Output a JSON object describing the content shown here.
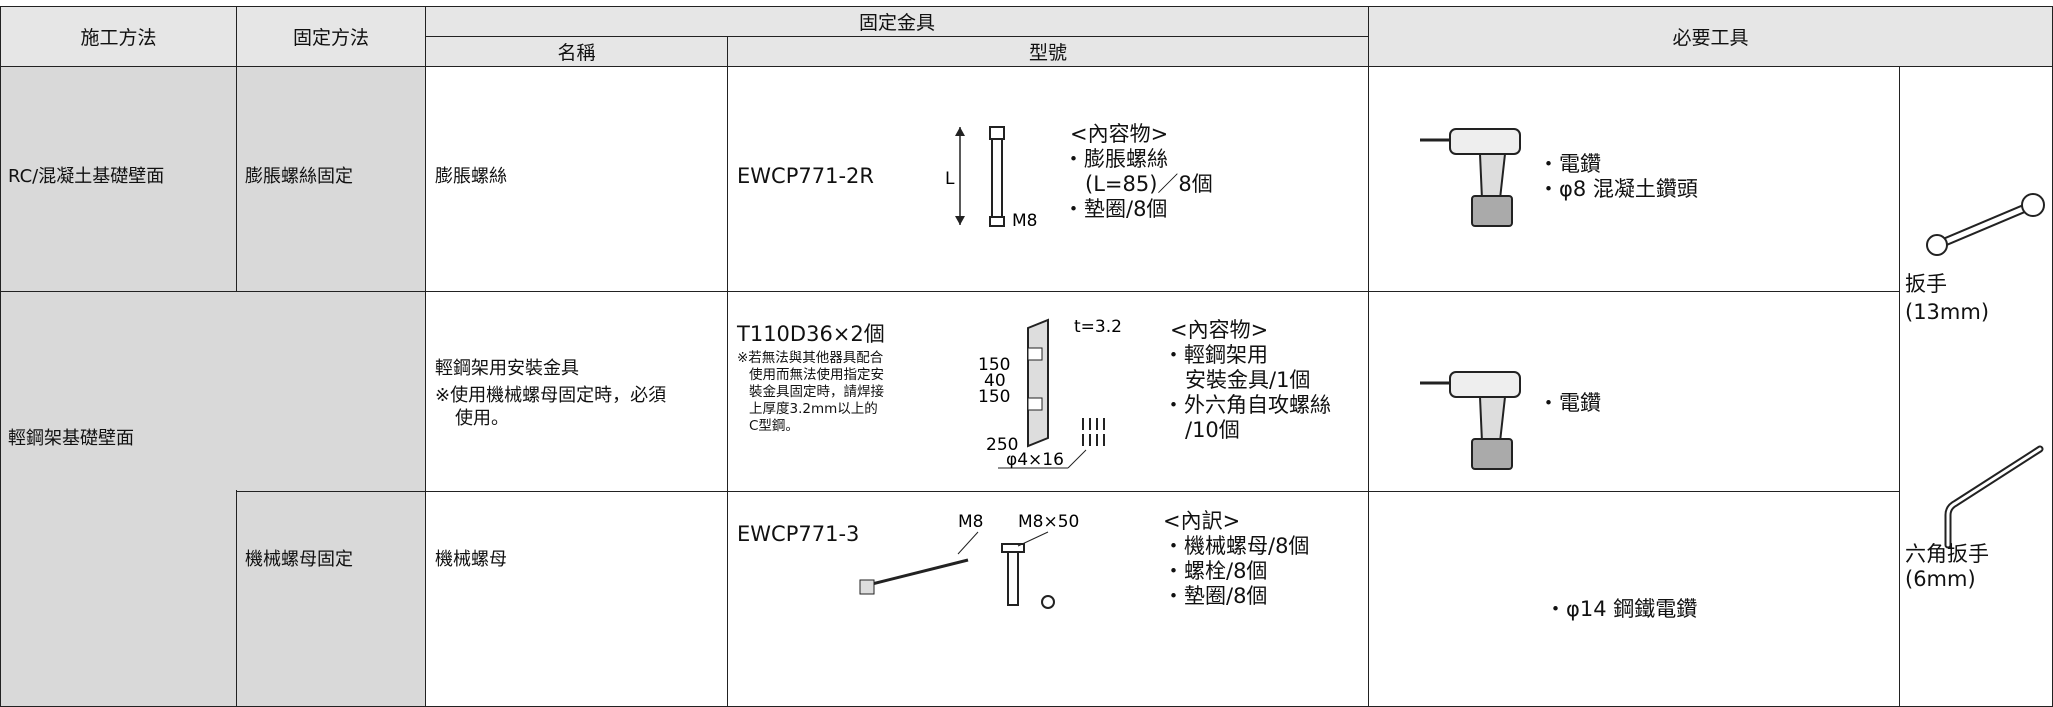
{
  "header": {
    "columns": [
      "施工方法",
      "固定方法",
      "固定金具",
      "必要工具"
    ],
    "sub_columns": [
      "名稱",
      "型號"
    ]
  },
  "rows": [
    {
      "method": "RC/混凝土基礎壁面",
      "fixing": "膨脹螺絲固定",
      "name": "膨脹螺絲",
      "model": "EWCP771-2R",
      "diagram_labels": [
        "L",
        "M8"
      ],
      "contents": [
        "<內容物>",
        "・膨脹螺絲",
        "(L=85)／8個",
        "・墊圈/8個"
      ],
      "tools": [
        "・電鑽",
        "・φ8 混凝土鑽頭"
      ]
    },
    {
      "method": "輕鋼架基礎壁面",
      "name": "輕鋼架用安裝金具",
      "name_note": [
        "※使用機械螺母固定時，必須",
        "使用。"
      ],
      "model": "T110D36×2個",
      "model_note": [
        "※若無法與其他器具配合",
        "使用而無法使用指定安",
        "裝金具固定時，請焊接",
        "上厚度3.2mm以上的",
        "C型鋼。"
      ],
      "diagram_labels": [
        "t=3.2",
        "150",
        "40",
        "150",
        "250",
        "φ4×16"
      ],
      "contents": [
        "<內容物>",
        "・輕鋼架用",
        "安裝金具/1個",
        "・外六角自攻螺絲",
        "/10個"
      ],
      "tools": [
        "・電鑽"
      ]
    },
    {
      "fixing": "機械螺母固定",
      "name": "機械螺母",
      "model": "EWCP771-3",
      "diagram_labels": [
        "M8",
        "M8×50"
      ],
      "contents": [
        "<內訳>",
        "・機械螺母/8個",
        "・螺栓/8個",
        "・墊圈/8個"
      ],
      "tools": [
        "・φ14 鋼鐵電鑽"
      ]
    }
  ],
  "side_tools": [
    {
      "name": "扳手",
      "size": "(13mm)"
    },
    {
      "name": "六角扳手",
      "size": "(6mm)"
    }
  ]
}
